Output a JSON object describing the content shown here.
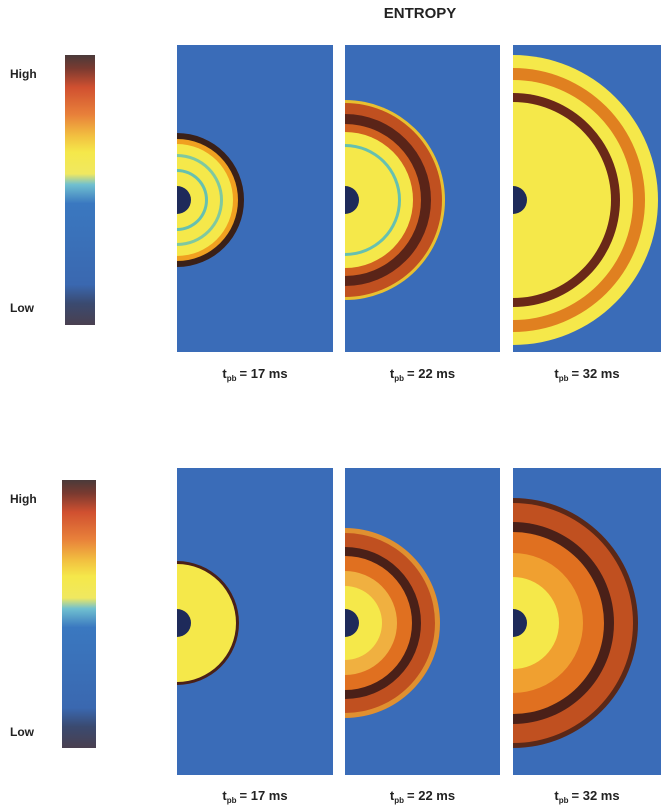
{
  "title": "ENTROPY",
  "figures": [
    {
      "colorbar": {
        "high": "High",
        "low": "Low"
      },
      "panels": [
        {
          "label": {
            "symbol": "t",
            "subscript": "pb",
            "value": "= 17 ms"
          }
        },
        {
          "label": {
            "symbol": "t",
            "subscript": "pb",
            "value": "= 22 ms"
          }
        },
        {
          "label": {
            "symbol": "t",
            "subscript": "pb",
            "value": "= 32 ms"
          }
        }
      ]
    },
    {
      "colorbar": {
        "high": "High",
        "low": "Low"
      },
      "panels": [
        {
          "label": {
            "symbol": "t",
            "subscript": "pb",
            "value": "= 17 ms"
          }
        },
        {
          "label": {
            "symbol": "t",
            "subscript": "pb",
            "value": "= 22 ms"
          }
        },
        {
          "label": {
            "symbol": "t",
            "subscript": "pb",
            "value": "= 32 ms"
          }
        }
      ]
    }
  ]
}
